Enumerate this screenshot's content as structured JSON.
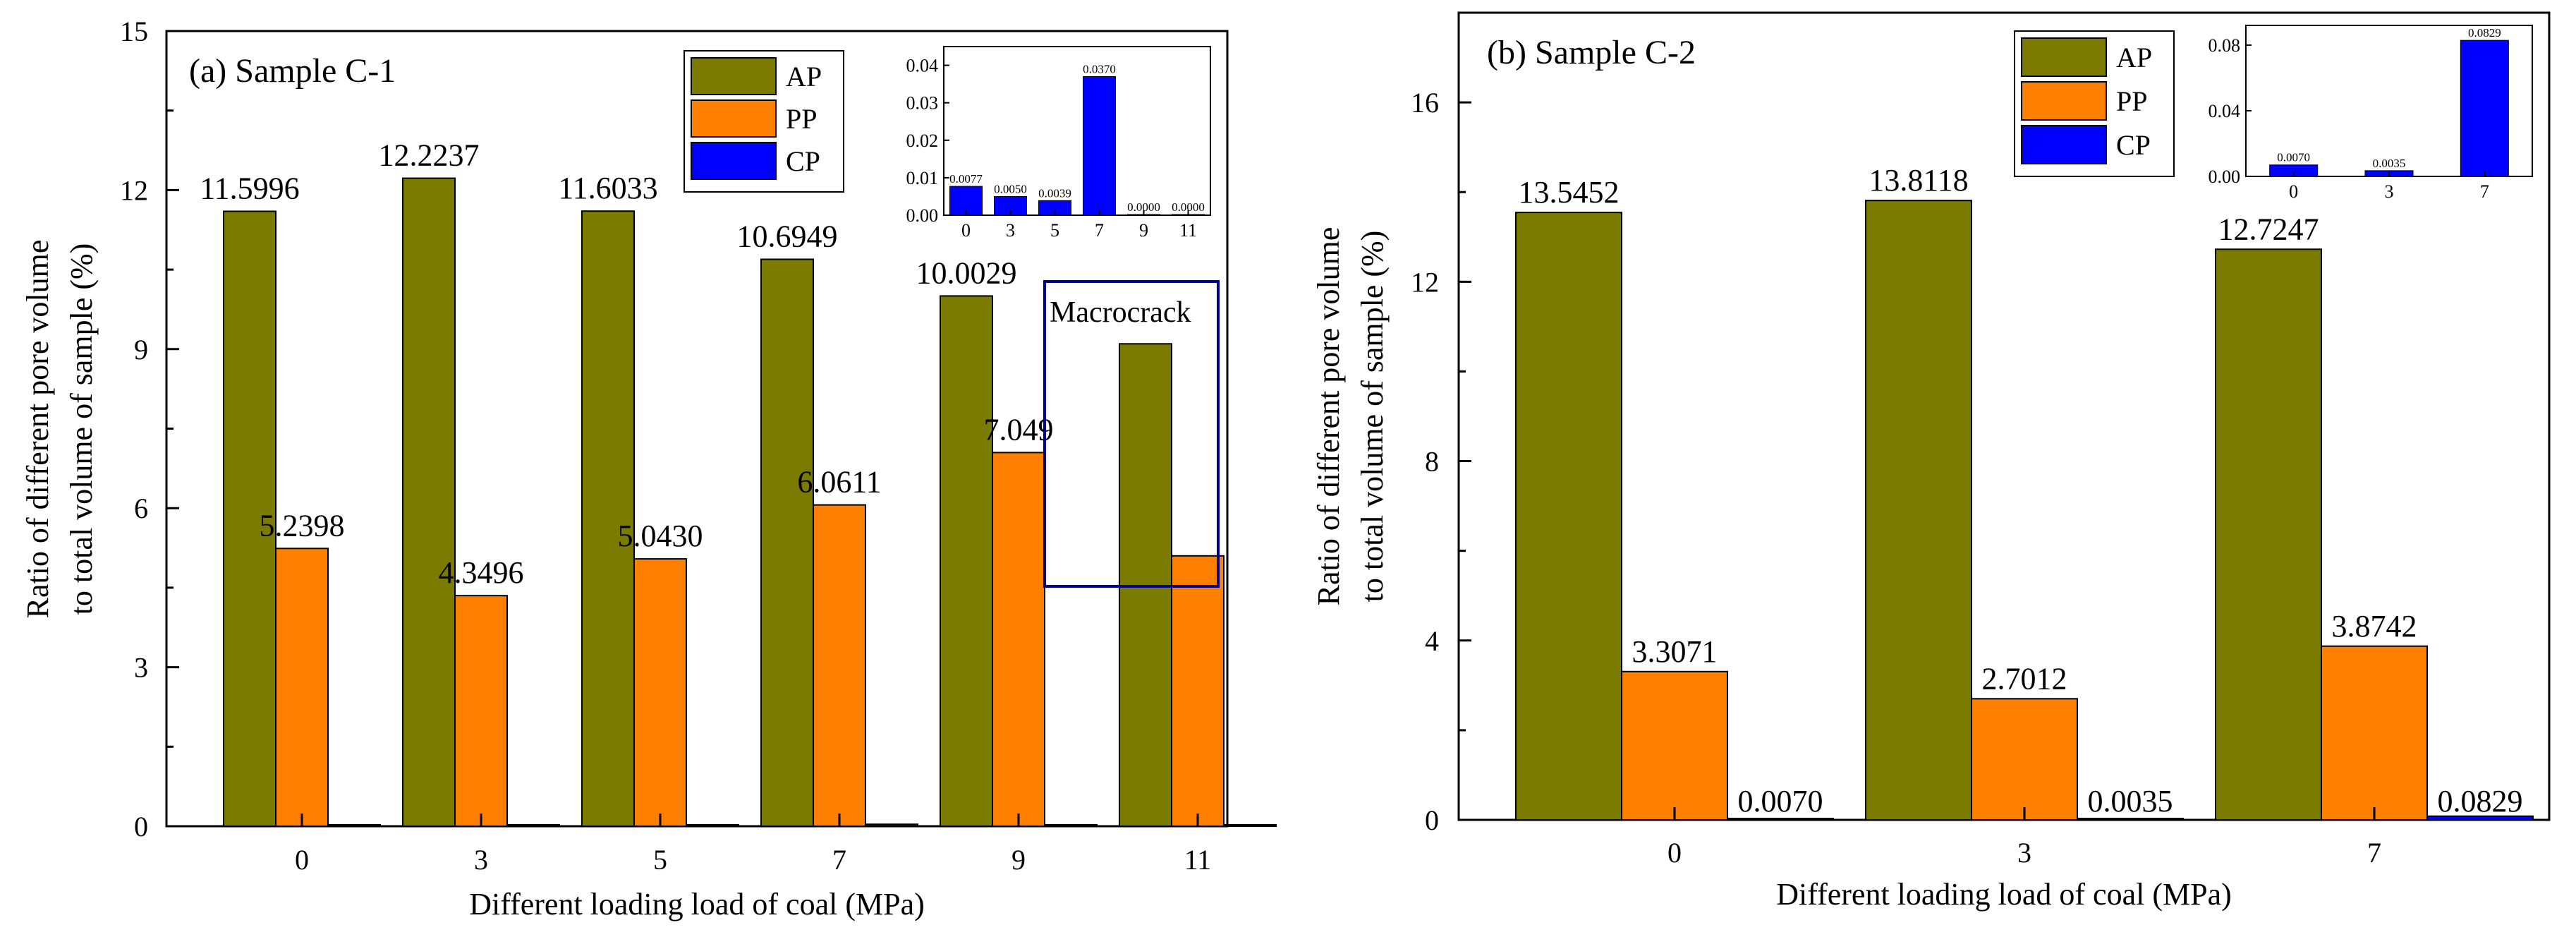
{
  "colors": {
    "AP": "#7b7b00",
    "PP": "#ff8000",
    "CP": "#0000ff",
    "annotation_box": "#00008b"
  },
  "chart_data": [
    {
      "type": "bar",
      "title": "(a) Sample C-1",
      "xlabel": "Different loading load of coal (MPa)",
      "ylabel_line1": "Ratio of different pore volume",
      "ylabel_line2": "to total volume of sample (%)",
      "ylim": [
        0,
        15
      ],
      "yticks": [
        "0",
        "3",
        "6",
        "9",
        "12",
        "15"
      ],
      "categories": [
        "0",
        "3",
        "5",
        "7",
        "9",
        "11"
      ],
      "legend": [
        "AP",
        "PP",
        "CP"
      ],
      "series": [
        {
          "name": "AP",
          "values": [
            11.5996,
            12.2237,
            11.6033,
            10.6949,
            10.0029,
            9.1
          ],
          "labels": [
            "11.5996",
            "12.2237",
            "11.6033",
            "10.6949",
            "10.0029",
            ""
          ]
        },
        {
          "name": "PP",
          "values": [
            5.2398,
            4.3496,
            5.043,
            6.0611,
            7.049,
            5.1
          ],
          "labels": [
            "5.2398",
            "4.3496",
            "5.0430",
            "6.0611",
            "7.049",
            ""
          ]
        },
        {
          "name": "CP",
          "values": [
            0.0077,
            0.005,
            0.0039,
            0.037,
            0.0,
            0.0
          ],
          "labels": [
            "",
            "",
            "",
            "",
            "",
            ""
          ]
        }
      ],
      "annotation": "Macrocrack",
      "inset": {
        "type": "bar",
        "series": "CP",
        "ylim": [
          0,
          0.045
        ],
        "yticks": [
          "0.00",
          "0.01",
          "0.02",
          "0.03",
          "0.04"
        ],
        "categories": [
          "0",
          "3",
          "5",
          "7",
          "9",
          "11"
        ],
        "values": [
          0.0077,
          0.005,
          0.0039,
          0.037,
          0.0,
          0.0
        ],
        "labels": [
          "0.0077",
          "0.0050",
          "0.0039",
          "0.0370",
          "0.0000",
          "0.0000"
        ]
      }
    },
    {
      "type": "bar",
      "title": "(b) Sample C-2",
      "xlabel": "Different loading load of coal (MPa)",
      "ylabel_line1": "Ratio of different pore volume",
      "ylabel_line2": "to total volume of sample (%)",
      "ylim": [
        0,
        18
      ],
      "yticks": [
        "0",
        "4",
        "8",
        "12",
        "16"
      ],
      "categories": [
        "0",
        "3",
        "7"
      ],
      "legend": [
        "AP",
        "PP",
        "CP"
      ],
      "series": [
        {
          "name": "AP",
          "values": [
            13.5452,
            13.8118,
            12.7247
          ],
          "labels": [
            "13.5452",
            "13.8118",
            "12.7247"
          ]
        },
        {
          "name": "PP",
          "values": [
            3.3071,
            2.7012,
            3.8742
          ],
          "labels": [
            "3.3071",
            "2.7012",
            "3.8742"
          ]
        },
        {
          "name": "CP",
          "values": [
            0.007,
            0.0035,
            0.0829
          ],
          "labels": [
            "0.0070",
            "0.0035",
            "0.0829"
          ]
        }
      ],
      "inset": {
        "type": "bar",
        "series": "CP",
        "ylim": [
          0,
          0.092
        ],
        "yticks": [
          "0.00",
          "0.04",
          "0.08"
        ],
        "categories": [
          "0",
          "3",
          "7"
        ],
        "values": [
          0.007,
          0.0035,
          0.0829
        ],
        "labels": [
          "0.0070",
          "0.0035",
          "0.0829"
        ]
      }
    }
  ]
}
